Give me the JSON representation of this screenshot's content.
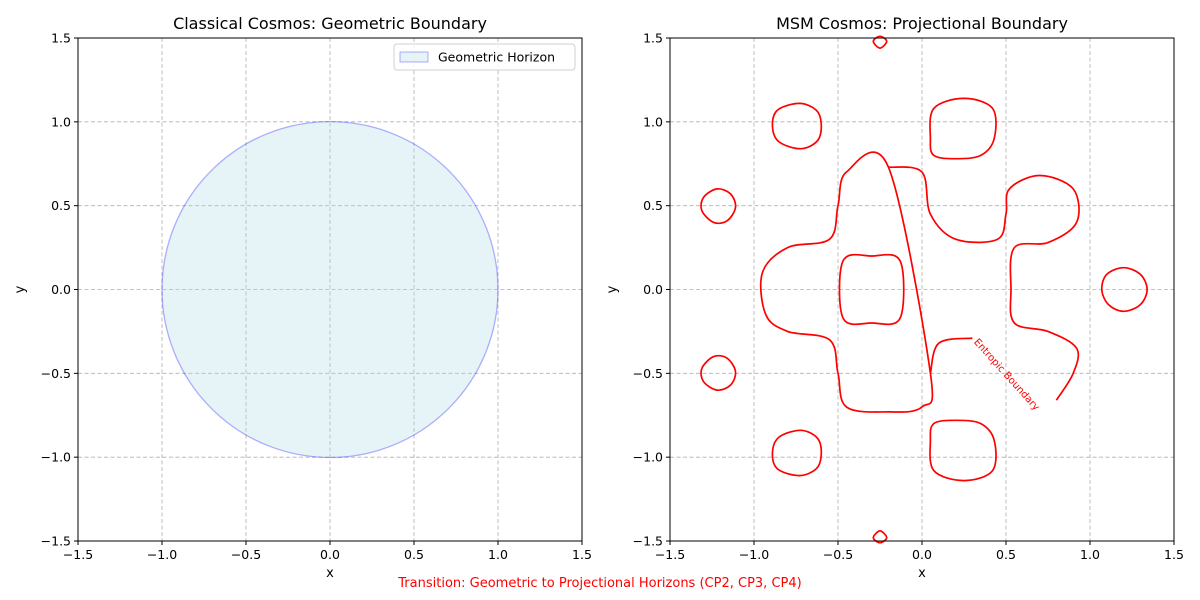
{
  "caption": "Transition: Geometric to Projectional Horizons (CP2, CP3, CP4)",
  "chart_data": [
    {
      "type": "area",
      "title": "Classical Cosmos: Geometric Boundary",
      "xlabel": "x",
      "ylabel": "y",
      "xlim": [
        -1.5,
        1.5
      ],
      "ylim": [
        -1.5,
        1.5
      ],
      "xticks": [
        "−1.5",
        "−1.0",
        "−0.5",
        "0.0",
        "0.5",
        "1.0",
        "1.5"
      ],
      "yticks": [
        "−1.5",
        "−1.0",
        "−0.5",
        "0.0",
        "0.5",
        "1.0",
        "1.5"
      ],
      "grid": true,
      "legend_position": "top-right",
      "series": [
        {
          "name": "Geometric Horizon",
          "shape": "circle",
          "center": [
            0,
            0
          ],
          "radius": 1.0,
          "fill": "#add8e6",
          "fill_opacity": 0.3,
          "stroke": "#0000ff",
          "stroke_opacity": 0.3
        }
      ]
    },
    {
      "type": "line",
      "title": "MSM Cosmos: Projectional Boundary",
      "xlabel": "x",
      "ylabel": "y",
      "xlim": [
        -1.5,
        1.5
      ],
      "ylim": [
        -1.5,
        1.5
      ],
      "xticks": [
        "−1.5",
        "−1.0",
        "−0.5",
        "0.0",
        "0.5",
        "1.0",
        "1.5"
      ],
      "yticks": [
        "−1.5",
        "−1.0",
        "−0.5",
        "0.0",
        "0.5",
        "1.0",
        "1.5"
      ],
      "grid": true,
      "color": "#ff0000",
      "contour_label": "Entropic Boundary",
      "contour_label_at": [
        0.49,
        -0.52
      ],
      "contour_label_angle": -48,
      "contours": [
        {
          "closed": true,
          "points": [
            [
              -0.2,
              0.73
            ],
            [
              -0.45,
              0.7
            ],
            [
              -0.5,
              0.5
            ],
            [
              -0.55,
              0.3
            ],
            [
              -0.8,
              0.25
            ],
            [
              -0.95,
              0.1
            ],
            [
              -0.93,
              -0.15
            ],
            [
              -0.8,
              -0.25
            ],
            [
              -0.55,
              -0.3
            ],
            [
              -0.5,
              -0.5
            ],
            [
              -0.45,
              -0.7
            ],
            [
              -0.2,
              -0.73
            ],
            [
              0.0,
              -0.7
            ],
            [
              0.05,
              -0.5
            ]
          ]
        },
        {
          "closed": false,
          "points": [
            [
              0.05,
              -0.5
            ],
            [
              0.1,
              -0.32
            ],
            [
              0.3,
              -0.29
            ]
          ]
        },
        {
          "closed": false,
          "points": [
            [
              0.8,
              -0.66
            ],
            [
              0.9,
              -0.5
            ],
            [
              0.92,
              -0.35
            ],
            [
              0.75,
              -0.25
            ],
            [
              0.55,
              -0.2
            ],
            [
              0.53,
              0.0
            ],
            [
              0.55,
              0.25
            ],
            [
              0.75,
              0.28
            ],
            [
              0.92,
              0.4
            ],
            [
              0.9,
              0.6
            ],
            [
              0.7,
              0.68
            ],
            [
              0.52,
              0.6
            ],
            [
              0.5,
              0.45
            ],
            [
              0.45,
              0.3
            ],
            [
              0.2,
              0.3
            ],
            [
              0.05,
              0.45
            ],
            [
              0.0,
              0.7
            ],
            [
              -0.2,
              0.73
            ]
          ]
        },
        {
          "closed": true,
          "points": [
            [
              -0.3,
              0.2
            ],
            [
              -0.47,
              0.17
            ],
            [
              -0.47,
              -0.17
            ],
            [
              -0.3,
              -0.2
            ],
            [
              -0.13,
              -0.17
            ],
            [
              -0.13,
              0.17
            ]
          ]
        },
        {
          "closed": true,
          "points": [
            [
              0.25,
              1.14
            ],
            [
              0.07,
              1.08
            ],
            [
              0.05,
              0.9
            ],
            [
              0.07,
              0.8
            ],
            [
              0.2,
              0.78
            ],
            [
              0.35,
              0.8
            ],
            [
              0.43,
              0.9
            ],
            [
              0.42,
              1.08
            ]
          ]
        },
        {
          "closed": true,
          "points": [
            [
              0.25,
              -1.14
            ],
            [
              0.07,
              -1.08
            ],
            [
              0.05,
              -0.9
            ],
            [
              0.07,
              -0.8
            ],
            [
              0.2,
              -0.78
            ],
            [
              0.35,
              -0.8
            ],
            [
              0.43,
              -0.9
            ],
            [
              0.42,
              -1.08
            ]
          ]
        },
        {
          "closed": true,
          "points": [
            [
              -0.73,
              1.11
            ],
            [
              -0.86,
              1.07
            ],
            [
              -0.89,
              0.97
            ],
            [
              -0.85,
              0.88
            ],
            [
              -0.72,
              0.84
            ],
            [
              -0.62,
              0.89
            ],
            [
              -0.6,
              0.99
            ],
            [
              -0.63,
              1.07
            ]
          ]
        },
        {
          "closed": true,
          "points": [
            [
              -0.73,
              -1.11
            ],
            [
              -0.86,
              -1.07
            ],
            [
              -0.89,
              -0.97
            ],
            [
              -0.85,
              -0.88
            ],
            [
              -0.72,
              -0.84
            ],
            [
              -0.62,
              -0.89
            ],
            [
              -0.6,
              -0.99
            ],
            [
              -0.63,
              -1.07
            ]
          ]
        },
        {
          "closed": true,
          "points": [
            [
              -1.22,
              0.6
            ],
            [
              -1.3,
              0.55
            ],
            [
              -1.31,
              0.47
            ],
            [
              -1.24,
              0.4
            ],
            [
              -1.16,
              0.41
            ],
            [
              -1.11,
              0.49
            ],
            [
              -1.14,
              0.57
            ]
          ]
        },
        {
          "closed": true,
          "points": [
            [
              -1.22,
              -0.6
            ],
            [
              -1.3,
              -0.55
            ],
            [
              -1.31,
              -0.47
            ],
            [
              -1.24,
              -0.4
            ],
            [
              -1.16,
              -0.41
            ],
            [
              -1.11,
              -0.49
            ],
            [
              -1.14,
              -0.57
            ]
          ]
        },
        {
          "closed": true,
          "points": [
            [
              1.2,
              0.13
            ],
            [
              1.1,
              0.09
            ],
            [
              1.07,
              0.0
            ],
            [
              1.11,
              -0.09
            ],
            [
              1.2,
              -0.13
            ],
            [
              1.3,
              -0.09
            ],
            [
              1.34,
              0.0
            ],
            [
              1.3,
              0.09
            ]
          ]
        },
        {
          "closed": true,
          "points": [
            [
              -0.25,
              1.51
            ],
            [
              -0.29,
              1.48
            ],
            [
              -0.25,
              1.44
            ],
            [
              -0.21,
              1.48
            ]
          ]
        },
        {
          "closed": true,
          "points": [
            [
              -0.25,
              -1.51
            ],
            [
              -0.29,
              -1.48
            ],
            [
              -0.25,
              -1.44
            ],
            [
              -0.21,
              -1.48
            ]
          ]
        }
      ]
    }
  ]
}
